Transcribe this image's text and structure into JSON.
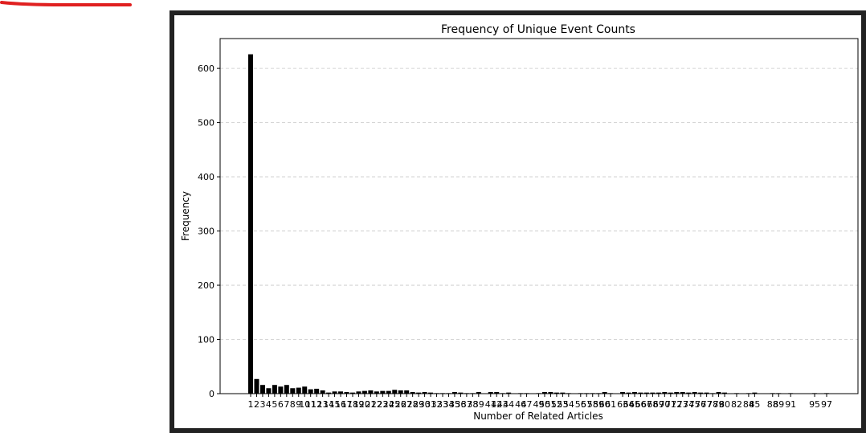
{
  "annotation": {
    "color": "#e02020"
  },
  "window": {
    "border_color": "#222222"
  },
  "chart_data": {
    "type": "bar",
    "title": "Frequency of Unique Event Counts",
    "xlabel": "Number of Related Articles",
    "ylabel": "Frequency",
    "ylim": [
      0,
      655
    ],
    "yticks": [
      0,
      100,
      200,
      300,
      400,
      500,
      600
    ],
    "grid": "y-dashed",
    "bar_color": "#000000",
    "x": [
      1,
      2,
      3,
      4,
      5,
      6,
      7,
      8,
      9,
      10,
      11,
      12,
      13,
      14,
      15,
      16,
      17,
      18,
      19,
      20,
      21,
      22,
      23,
      24,
      25,
      26,
      27,
      28,
      29,
      30,
      31,
      32,
      33,
      34,
      35,
      36,
      37,
      38,
      39,
      41,
      42,
      43,
      44,
      46,
      47,
      49,
      50,
      51,
      52,
      53,
      54,
      56,
      57,
      58,
      59,
      60,
      61,
      63,
      64,
      65,
      66,
      67,
      68,
      69,
      70,
      71,
      72,
      73,
      74,
      75,
      76,
      77,
      78,
      79,
      80,
      82,
      84,
      85,
      88,
      89,
      91,
      95,
      97
    ],
    "values": [
      626,
      27,
      16,
      10,
      16,
      13,
      16,
      10,
      11,
      13,
      8,
      9,
      6,
      2,
      4,
      4,
      3,
      2,
      4,
      5,
      6,
      4,
      5,
      5,
      7,
      6,
      6,
      3,
      2,
      3,
      2,
      1,
      1,
      1,
      3,
      2,
      1,
      1,
      3,
      3,
      3,
      1,
      2,
      1,
      1,
      1,
      3,
      3,
      2,
      2,
      1,
      1,
      1,
      1,
      1,
      3,
      1,
      3,
      2,
      3,
      2,
      2,
      2,
      2,
      3,
      2,
      3,
      3,
      2,
      3,
      2,
      2,
      1,
      3,
      2,
      1,
      1,
      2,
      1,
      1,
      1,
      1,
      1
    ],
    "xtick_labels": [
      {
        "x": 1,
        "text": "1"
      },
      {
        "x": 2,
        "text": "2"
      },
      {
        "x": 3,
        "text": "3"
      },
      {
        "x": 4,
        "text": "4"
      },
      {
        "x": 5,
        "text": "5"
      },
      {
        "x": 6,
        "text": "6"
      },
      {
        "x": 7,
        "text": "7"
      },
      {
        "x": 8,
        "text": "8"
      },
      {
        "x": 9,
        "text": "9"
      },
      {
        "x": 10,
        "text": "10"
      },
      {
        "x": 11,
        "text": "11"
      },
      {
        "x": 12,
        "text": "12"
      },
      {
        "x": 13,
        "text": "13"
      },
      {
        "x": 14,
        "text": "14"
      },
      {
        "x": 15,
        "text": "15"
      },
      {
        "x": 16,
        "text": "16"
      },
      {
        "x": 17,
        "text": "17"
      },
      {
        "x": 18,
        "text": "18"
      },
      {
        "x": 19,
        "text": "19"
      },
      {
        "x": 20,
        "text": "20"
      },
      {
        "x": 21,
        "text": "21"
      },
      {
        "x": 22,
        "text": "22"
      },
      {
        "x": 23,
        "text": "23"
      },
      {
        "x": 24,
        "text": "24"
      },
      {
        "x": 25,
        "text": "25"
      },
      {
        "x": 26,
        "text": "26"
      },
      {
        "x": 27,
        "text": "27"
      },
      {
        "x": 28,
        "text": "28"
      },
      {
        "x": 29,
        "text": "29"
      },
      {
        "x": 30,
        "text": "30"
      },
      {
        "x": 31,
        "text": "31"
      },
      {
        "x": 32,
        "text": "32"
      },
      {
        "x": 33,
        "text": "33"
      },
      {
        "x": 34,
        "text": "34"
      },
      {
        "x": 35,
        "text": "35"
      },
      {
        "x": 36,
        "text": "36"
      },
      {
        "x": 37,
        "text": "37"
      },
      {
        "x": 38,
        "text": "38"
      },
      {
        "x": 39,
        "text": "39"
      },
      {
        "x": 41,
        "text": "41"
      },
      {
        "x": 42,
        "text": "42"
      },
      {
        "x": 43,
        "text": "43"
      },
      {
        "x": 44,
        "text": "44"
      },
      {
        "x": 46,
        "text": "46"
      },
      {
        "x": 47,
        "text": "47"
      },
      {
        "x": 49,
        "text": "49"
      },
      {
        "x": 50,
        "text": "50"
      },
      {
        "x": 51,
        "text": "51"
      },
      {
        "x": 52,
        "text": "52"
      },
      {
        "x": 53,
        "text": "53"
      },
      {
        "x": 54,
        "text": "54"
      },
      {
        "x": 56,
        "text": "56"
      },
      {
        "x": 57,
        "text": "57"
      },
      {
        "x": 58,
        "text": "58"
      },
      {
        "x": 59,
        "text": "59"
      },
      {
        "x": 60,
        "text": "60"
      },
      {
        "x": 61,
        "text": "61"
      },
      {
        "x": 63,
        "text": "63"
      },
      {
        "x": 64,
        "text": "64"
      },
      {
        "x": 65,
        "text": "65"
      },
      {
        "x": 66,
        "text": "66"
      },
      {
        "x": 67,
        "text": "67"
      },
      {
        "x": 68,
        "text": "68"
      },
      {
        "x": 69,
        "text": "69"
      },
      {
        "x": 70,
        "text": "70"
      },
      {
        "x": 71,
        "text": "71"
      },
      {
        "x": 72,
        "text": "72"
      },
      {
        "x": 73,
        "text": "73"
      },
      {
        "x": 74,
        "text": "74"
      },
      {
        "x": 75,
        "text": "75"
      },
      {
        "x": 76,
        "text": "76"
      },
      {
        "x": 77,
        "text": "77"
      },
      {
        "x": 78,
        "text": "78"
      },
      {
        "x": 79,
        "text": "79"
      },
      {
        "x": 80,
        "text": "80"
      },
      {
        "x": 82,
        "text": "82"
      },
      {
        "x": 84,
        "text": "84"
      },
      {
        "x": 85,
        "text": "85"
      },
      {
        "x": 88,
        "text": "88"
      },
      {
        "x": 89,
        "text": "89"
      },
      {
        "x": 91,
        "text": "91"
      },
      {
        "x": 95,
        "text": "95"
      },
      {
        "x": 97,
        "text": "97"
      }
    ]
  }
}
